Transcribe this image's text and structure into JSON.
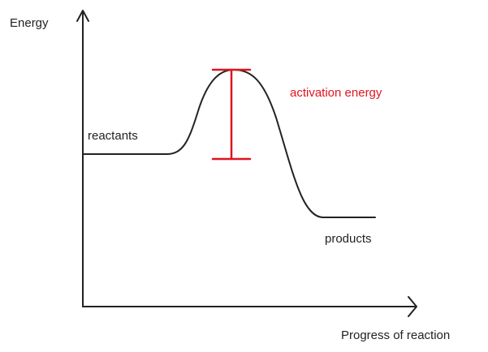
{
  "axes": {
    "y_label": "Energy",
    "x_label": "Progress of reaction"
  },
  "labels": {
    "reactants": "reactants",
    "activation_energy": "activation energy",
    "products": "products"
  }
}
